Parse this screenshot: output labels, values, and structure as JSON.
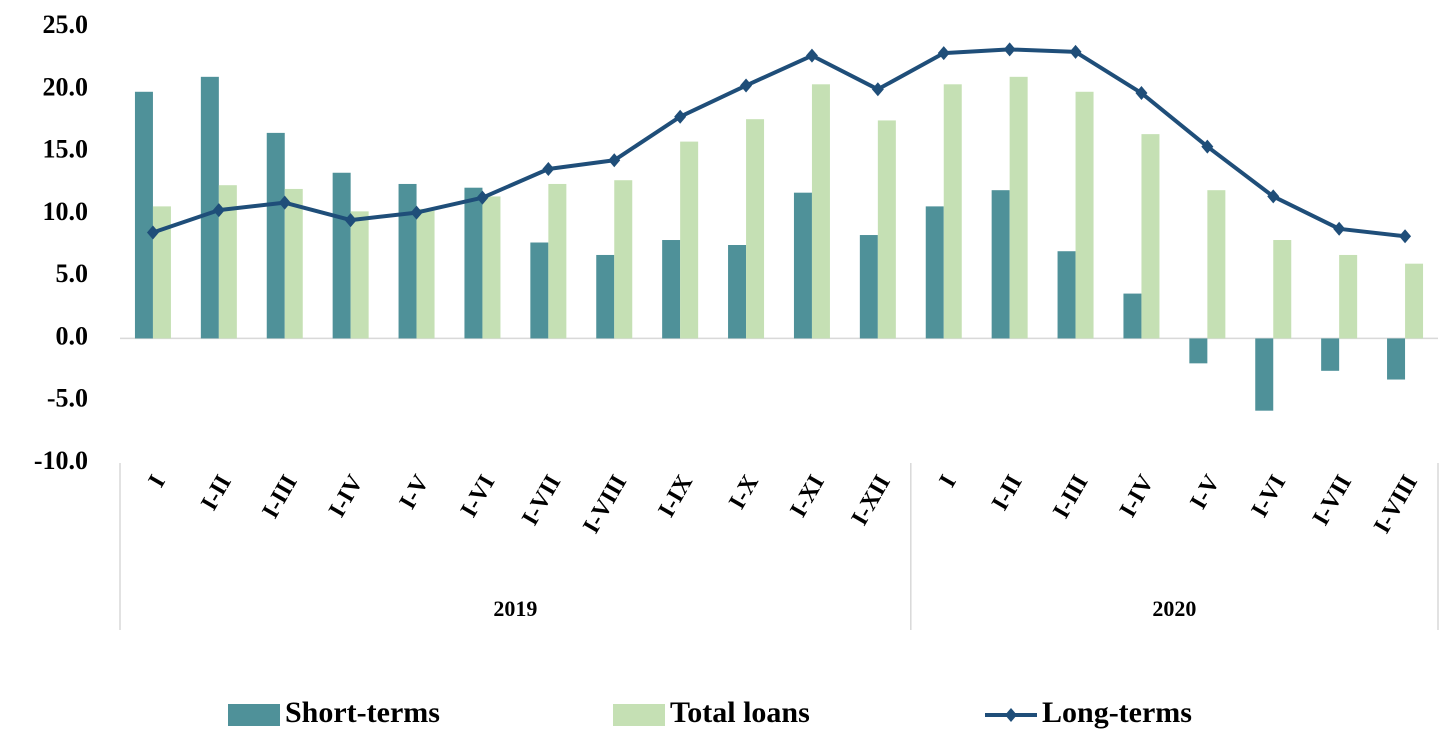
{
  "chart_data": {
    "type": "bar_line",
    "groups": [
      {
        "name": "2019",
        "categories": [
          "I",
          "I-II",
          "I-III",
          "I-IV",
          "I-V",
          "I-VI",
          "I-VII",
          "I-VIII",
          "I-IX",
          "I-X",
          "I-XI",
          "I-XII"
        ]
      },
      {
        "name": "2020",
        "categories": [
          "I",
          "I-II",
          "I-III",
          "I-IV",
          "I-V",
          "I-VI",
          "I-VII",
          "I-VIII"
        ]
      }
    ],
    "series": [
      {
        "name": "Short-terms",
        "type": "bar",
        "color": "#4f9199",
        "values": [
          19.8,
          21.0,
          16.5,
          13.3,
          12.4,
          12.1,
          7.7,
          6.7,
          7.9,
          7.5,
          11.7,
          8.3,
          10.6,
          11.9,
          7.0,
          3.6,
          -2.0,
          -5.8,
          -2.6,
          -3.3
        ]
      },
      {
        "name": "Total loans",
        "type": "bar",
        "color": "#c5e0b4",
        "values": [
          10.6,
          12.3,
          12.0,
          10.2,
          10.4,
          11.4,
          12.4,
          12.7,
          15.8,
          17.6,
          20.4,
          17.5,
          20.4,
          21.0,
          19.8,
          16.4,
          11.9,
          7.9,
          6.7,
          6.0
        ]
      },
      {
        "name": "Long-terms",
        "type": "line",
        "color": "#1f4e79",
        "values": [
          8.5,
          10.3,
          10.9,
          9.5,
          10.1,
          11.3,
          13.6,
          14.3,
          17.8,
          20.3,
          22.7,
          20.0,
          22.9,
          23.2,
          23.0,
          19.7,
          15.4,
          11.4,
          8.8,
          8.2
        ]
      }
    ],
    "ylim": [
      -10,
      25
    ],
    "yticks": [
      {
        "value": -10,
        "label": "-10.0"
      },
      {
        "value": -5,
        "label": "-5.0"
      },
      {
        "value": 0,
        "label": "0.0"
      },
      {
        "value": 5,
        "label": "5.0"
      },
      {
        "value": 10,
        "label": "10.0"
      },
      {
        "value": 15,
        "label": "15.0"
      },
      {
        "value": 20,
        "label": "20.0"
      },
      {
        "value": 25,
        "label": "25.0"
      }
    ],
    "grid": false,
    "legend": "bottom"
  }
}
